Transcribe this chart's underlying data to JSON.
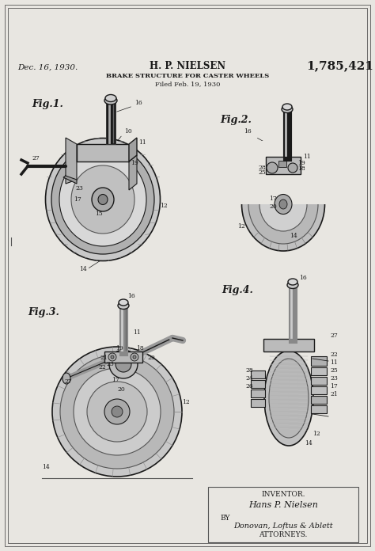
{
  "page_color": "#e8e6e1",
  "text_color": "#1a1a1a",
  "line_color": "#1a1a1a",
  "date_text": "Dec. 16, 1930.",
  "inventor_name": "H. P. NIELSEN",
  "patent_number": "1,785,421",
  "subtitle": "BRAKE STRUCTURE FOR CASTER WHEELS",
  "filed_text": "Filed Feb. 19, 1930",
  "fig1_label": "Fig.1.",
  "fig2_label": "Fig.2.",
  "fig3_label": "Fig.3.",
  "fig4_label": "Fig.4.",
  "inventor_label": "INVENTOR.",
  "inventor_sig": "Hans P. Nielsen",
  "by_label": "BY",
  "attorney_sig": "Donovan, Loftus & Ablett",
  "attorney_label": "ATTORNEYS.",
  "fig_width": 474,
  "fig_height": 696,
  "dpi": 100
}
